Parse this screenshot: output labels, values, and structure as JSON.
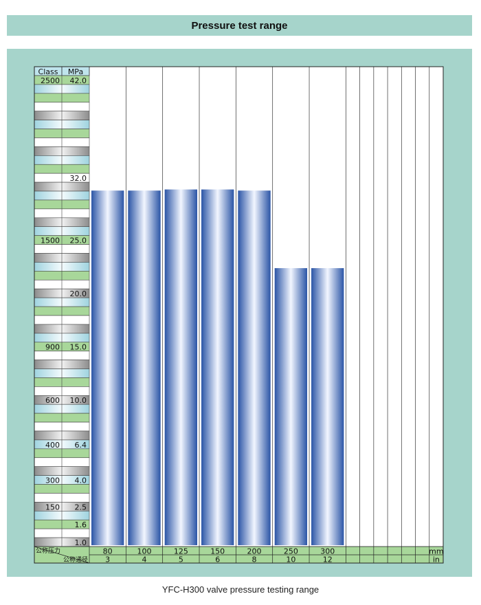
{
  "title": "Pressure test range",
  "caption": "YFC-H300 valve pressure testing range",
  "chart_data": {
    "type": "bar",
    "ylim": [
      0,
      42
    ],
    "header": {
      "class_label": "Class",
      "mpa_label": "MPa"
    },
    "scale_rows": 53,
    "pressure_labels": [
      {
        "row": 0,
        "class": "2500",
        "mpa": "42.0"
      },
      {
        "row": 11,
        "mpa": "32.0"
      },
      {
        "row": 18,
        "class": "1500",
        "mpa": "25.0"
      },
      {
        "row": 24,
        "mpa": "20.0"
      },
      {
        "row": 30,
        "class": "900",
        "mpa": "15.0"
      },
      {
        "row": 36,
        "class": "600",
        "mpa": "10.0"
      },
      {
        "row": 41,
        "class": "400",
        "mpa": "6.4"
      },
      {
        "row": 45,
        "class": "300",
        "mpa": "4.0"
      },
      {
        "row": 48,
        "class": "150",
        "mpa": "2.5"
      },
      {
        "row": 50,
        "mpa": "1.6"
      },
      {
        "row": 52,
        "mpa": "1.0"
      }
    ],
    "bottom_labels": {
      "nominal_pressure": "公称压力",
      "nominal_size": "公称通径"
    },
    "units": {
      "mm": "mm",
      "in": "in"
    },
    "categories_mm": [
      "80",
      "100",
      "125",
      "150",
      "200",
      "250",
      "300",
      "",
      "",
      "",
      "",
      "",
      "",
      ""
    ],
    "categories_in": [
      "3",
      "4",
      "5",
      "6",
      "8",
      "10",
      "12",
      "",
      "",
      "",
      "",
      "",
      "",
      ""
    ],
    "values_mpa": [
      32.0,
      32.0,
      32.1,
      32.1,
      32.0,
      25.0,
      25.0,
      null,
      null,
      null,
      null,
      null,
      null,
      null
    ],
    "colors": {
      "bar_edge": "#2b55a6",
      "bar_center": "#f2f6ff",
      "green": "#a8d79a",
      "light_cyan": "#bfe4ec",
      "gray": "#a9a9a9",
      "frame": "#a6d4cb"
    }
  }
}
